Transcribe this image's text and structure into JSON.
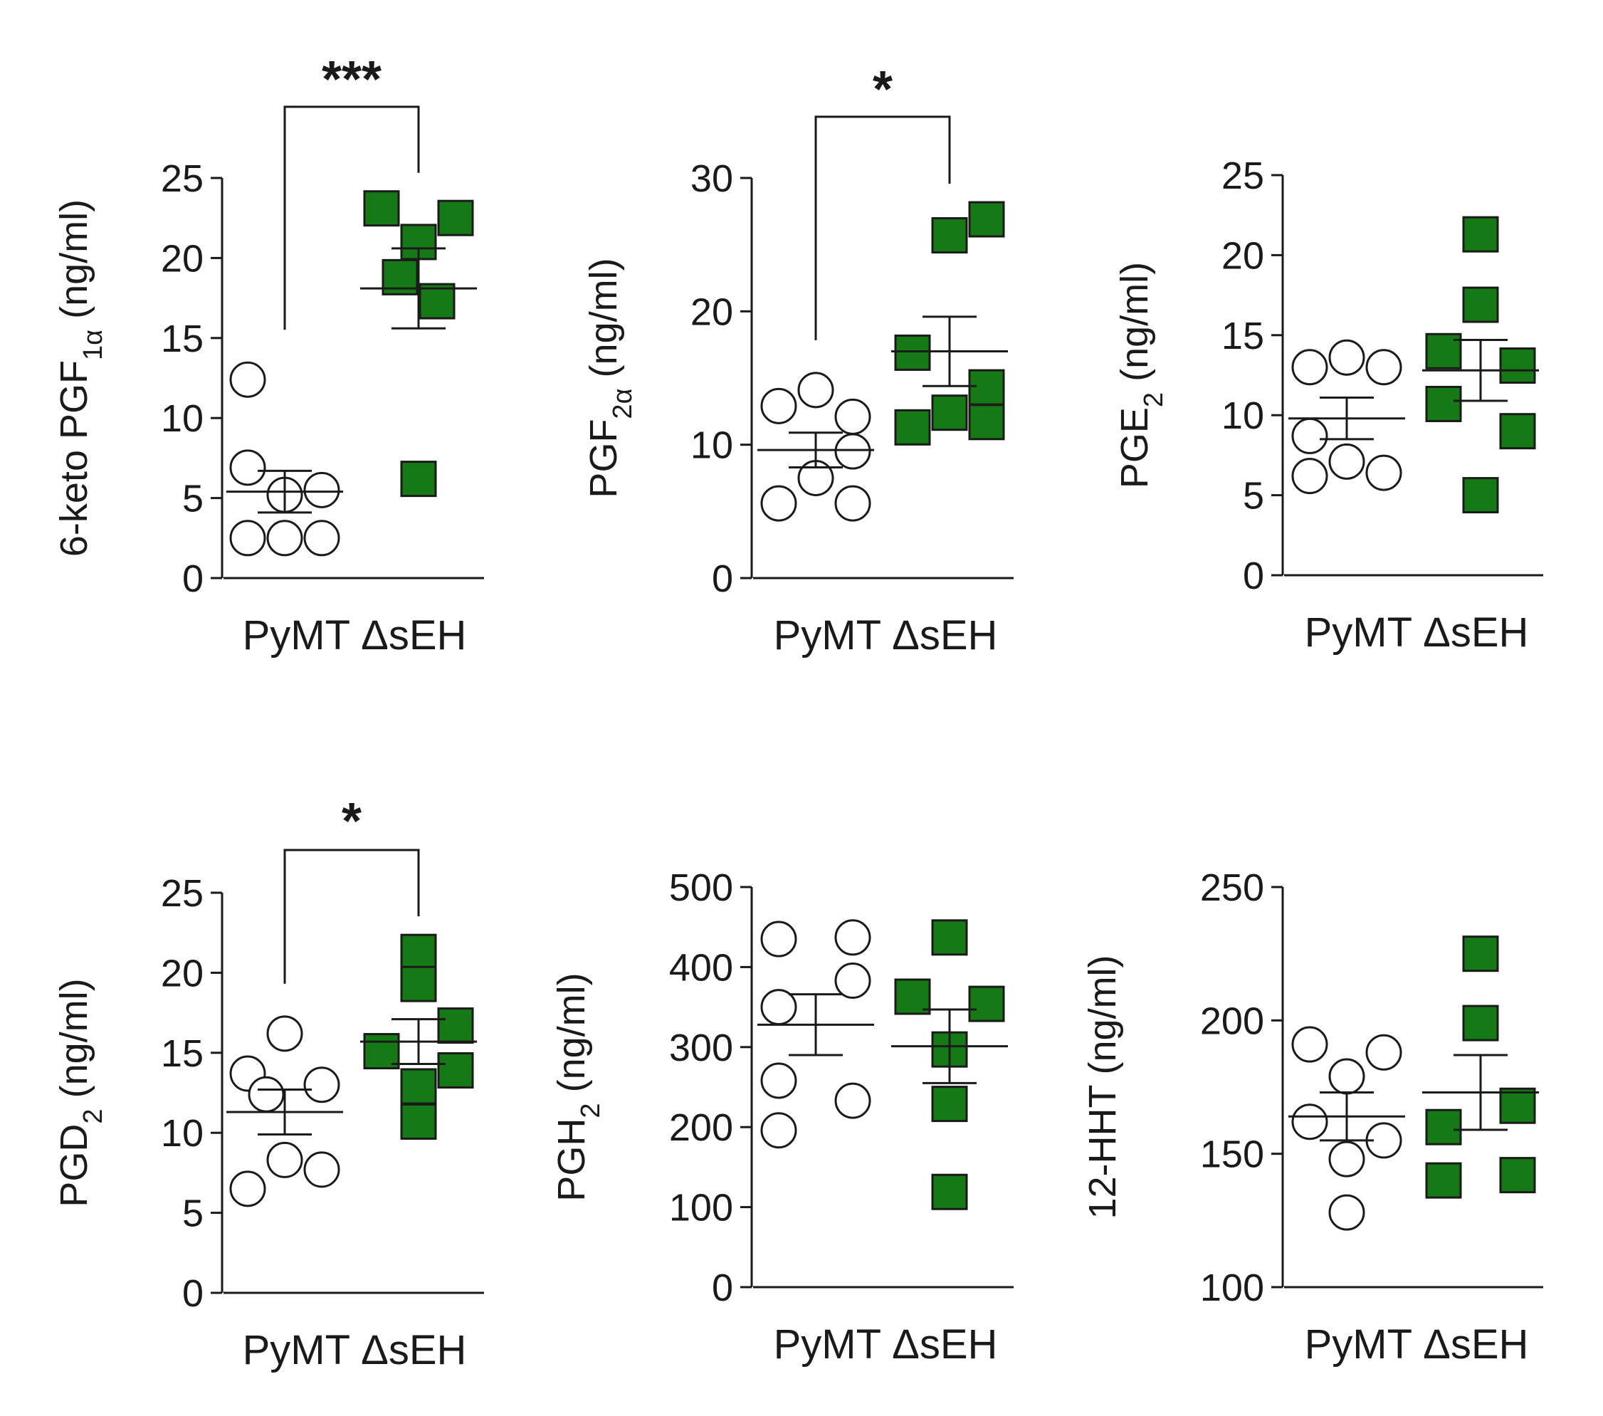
{
  "colors": {
    "delta_seh_fill": "#157a15",
    "pymt_fill": "#ffffff",
    "ink": "#1a1a1a"
  },
  "chart_data": [
    {
      "type": "scatter",
      "ylabel": {
        "before": "6-keto PGF",
        "sub": "1α",
        "after": " (ng/ml)"
      },
      "ylim": [
        0,
        25
      ],
      "yticks": [
        0,
        5,
        10,
        15,
        20,
        25
      ],
      "ytick_labels": [
        "0",
        "5",
        "10",
        "15",
        "20",
        "25"
      ],
      "categories": [
        "PyMT",
        "ΔsEH"
      ],
      "category_label_text": "PyMT ΔsEH",
      "significance": "***",
      "series": [
        {
          "name": "PyMT",
          "marker": "open-circle",
          "points": [
            [
              -0.5,
              12.4
            ],
            [
              -0.5,
              6.9
            ],
            [
              0.5,
              5.5
            ],
            [
              0.0,
              5.2
            ],
            [
              -0.5,
              2.5
            ],
            [
              0.0,
              2.5
            ],
            [
              0.5,
              2.5
            ]
          ],
          "mean": 5.4,
          "sem_low": 4.1,
          "sem_high": 6.7
        },
        {
          "name": "ΔsEH",
          "marker": "green-square",
          "points": [
            [
              -0.5,
              23.1
            ],
            [
              0.5,
              22.5
            ],
            [
              0.0,
              21.0
            ],
            [
              -0.25,
              18.8
            ],
            [
              0.25,
              17.3
            ],
            [
              0.0,
              6.2
            ]
          ],
          "mean": 18.1,
          "sem_low": 15.6,
          "sem_high": 20.6
        }
      ]
    },
    {
      "type": "scatter",
      "ylabel": {
        "before": "PGF",
        "sub": "2α",
        "after": " (ng/ml)"
      },
      "ylim": [
        0,
        30
      ],
      "yticks": [
        0,
        10,
        20,
        30
      ],
      "ytick_labels": [
        "0",
        "10",
        "20",
        "30"
      ],
      "categories": [
        "PyMT",
        "ΔsEH"
      ],
      "category_label_text": "PyMT ΔsEH",
      "significance": "*",
      "series": [
        {
          "name": "PyMT",
          "marker": "open-circle",
          "points": [
            [
              0.0,
              14.1
            ],
            [
              -0.5,
              12.9
            ],
            [
              0.5,
              12.1
            ],
            [
              0.5,
              9.5
            ],
            [
              0.0,
              7.5
            ],
            [
              -0.5,
              5.6
            ],
            [
              0.5,
              5.6
            ]
          ],
          "mean": 9.6,
          "sem_low": 8.3,
          "sem_high": 10.9
        },
        {
          "name": "ΔsEH",
          "marker": "green-square",
          "points": [
            [
              0.5,
              26.9
            ],
            [
              0.0,
              25.7
            ],
            [
              -0.5,
              16.9
            ],
            [
              0.5,
              14.3
            ],
            [
              0.0,
              12.4
            ],
            [
              -0.5,
              11.3
            ],
            [
              0.5,
              11.7
            ]
          ],
          "mean": 17.0,
          "sem_low": 14.4,
          "sem_high": 19.6
        }
      ]
    },
    {
      "type": "scatter",
      "ylabel": {
        "before": "PGE",
        "sub": "2",
        "after": " (ng/ml)"
      },
      "ylim": [
        0,
        25
      ],
      "yticks": [
        0,
        5,
        10,
        15,
        20,
        25
      ],
      "ytick_labels": [
        "0",
        "5",
        "10",
        "15",
        "20",
        "25"
      ],
      "categories": [
        "PyMT",
        "ΔsEH"
      ],
      "category_label_text": "PyMT ΔsEH",
      "significance": "",
      "series": [
        {
          "name": "PyMT",
          "marker": "open-circle",
          "points": [
            [
              -0.5,
              13.0
            ],
            [
              0.0,
              13.6
            ],
            [
              0.5,
              13.0
            ],
            [
              -0.5,
              8.7
            ],
            [
              0.0,
              7.1
            ],
            [
              -0.5,
              6.2
            ],
            [
              0.5,
              6.4
            ]
          ],
          "mean": 9.8,
          "sem_low": 8.5,
          "sem_high": 11.1
        },
        {
          "name": "ΔsEH",
          "marker": "green-square",
          "points": [
            [
              0.0,
              21.3
            ],
            [
              0.0,
              16.9
            ],
            [
              -0.5,
              14.0
            ],
            [
              0.5,
              13.1
            ],
            [
              -0.5,
              10.7
            ],
            [
              0.5,
              9.0
            ],
            [
              0.0,
              5.0
            ]
          ],
          "mean": 12.8,
          "sem_low": 10.9,
          "sem_high": 14.7
        }
      ]
    },
    {
      "type": "scatter",
      "ylabel": {
        "before": "PGD",
        "sub": "2",
        "after": " (ng/ml)"
      },
      "ylim": [
        0,
        25
      ],
      "yticks": [
        0,
        5,
        10,
        15,
        20,
        25
      ],
      "ytick_labels": [
        "0",
        "5",
        "10",
        "15",
        "20",
        "25"
      ],
      "categories": [
        "PyMT",
        "ΔsEH"
      ],
      "category_label_text": "PyMT ΔsEH",
      "significance": "*",
      "series": [
        {
          "name": "PyMT",
          "marker": "open-circle",
          "points": [
            [
              0.0,
              16.2
            ],
            [
              -0.5,
              13.7
            ],
            [
              0.5,
              13.0
            ],
            [
              -0.25,
              12.4
            ],
            [
              0.0,
              8.3
            ],
            [
              0.5,
              7.7
            ],
            [
              -0.5,
              6.5
            ]
          ],
          "mean": 11.3,
          "sem_low": 9.9,
          "sem_high": 12.7
        },
        {
          "name": "ΔsEH",
          "marker": "green-square",
          "points": [
            [
              0.0,
              21.3
            ],
            [
              0.0,
              19.3
            ],
            [
              0.5,
              16.7
            ],
            [
              -0.5,
              15.1
            ],
            [
              0.5,
              13.9
            ],
            [
              0.0,
              12.9
            ],
            [
              0.0,
              10.7
            ]
          ],
          "mean": 15.7,
          "sem_low": 14.3,
          "sem_high": 17.1
        }
      ]
    },
    {
      "type": "scatter",
      "ylabel": {
        "before": "PGH",
        "sub": "2",
        "after": " (ng/ml)"
      },
      "ylim": [
        0,
        500
      ],
      "yticks": [
        0,
        100,
        200,
        300,
        400,
        500
      ],
      "ytick_labels": [
        "0",
        "100",
        "200",
        "300",
        "400",
        "500"
      ],
      "categories": [
        "PyMT",
        "ΔsEH"
      ],
      "category_label_text": "PyMT ΔsEH",
      "significance": "",
      "series": [
        {
          "name": "PyMT",
          "marker": "open-circle",
          "points": [
            [
              -0.5,
              435
            ],
            [
              0.5,
              437
            ],
            [
              0.5,
              383
            ],
            [
              -0.5,
              350
            ],
            [
              -0.5,
              258
            ],
            [
              0.5,
              233
            ],
            [
              -0.5,
              196
            ]
          ],
          "mean": 328,
          "sem_low": 290,
          "sem_high": 366
        },
        {
          "name": "ΔsEH",
          "marker": "green-square",
          "points": [
            [
              0.0,
              437
            ],
            [
              -0.5,
              363
            ],
            [
              0.5,
              354
            ],
            [
              0.0,
              297
            ],
            [
              0.0,
              229
            ],
            [
              0.0,
              119
            ]
          ],
          "mean": 301,
          "sem_low": 255,
          "sem_high": 347
        }
      ]
    },
    {
      "type": "scatter",
      "ylabel": {
        "before": "12-HHT",
        "sub": "",
        "after": " (ng/ml)"
      },
      "ylim": [
        100,
        250
      ],
      "yticks": [
        100,
        150,
        200,
        250
      ],
      "ytick_labels": [
        "100",
        "150",
        "200",
        "250"
      ],
      "categories": [
        "PyMT",
        "ΔsEH"
      ],
      "category_label_text": "PyMT ΔsEH",
      "significance": "",
      "series": [
        {
          "name": "PyMT",
          "marker": "open-circle",
          "points": [
            [
              -0.5,
              191
            ],
            [
              0.5,
              188
            ],
            [
              0.0,
              179
            ],
            [
              -0.5,
              162
            ],
            [
              0.5,
              155
            ],
            [
              0.0,
              148
            ],
            [
              0.0,
              128
            ]
          ],
          "mean": 164,
          "sem_low": 155,
          "sem_high": 173
        },
        {
          "name": "ΔsEH",
          "marker": "green-square",
          "points": [
            [
              0.0,
              225
            ],
            [
              0.0,
              199
            ],
            [
              0.5,
              168
            ],
            [
              -0.5,
              160
            ],
            [
              0.5,
              142
            ],
            [
              -0.5,
              140
            ]
          ],
          "mean": 173,
          "sem_low": 159,
          "sem_high": 187
        }
      ]
    }
  ]
}
